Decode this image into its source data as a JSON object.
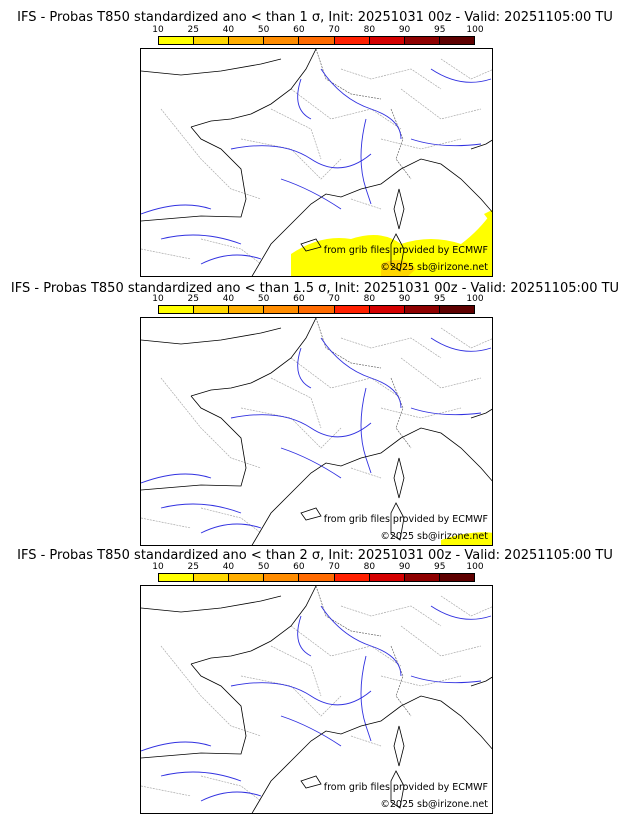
{
  "panels": [
    {
      "title": "IFS - Probas T850  standardized ano < than 1 σ, Init: 20251031 00z - Valid: 20251105:00 TU"
    },
    {
      "title": "IFS - Probas T850  standardized ano < than 1.5 σ, Init: 20251031 00z - Valid: 20251105:00 TU"
    },
    {
      "title": "IFS - Probas T850  standardized ano < than 2 σ, Init: 20251031 00z - Valid: 20251105:00 TU"
    }
  ],
  "colorbar": {
    "ticks": [
      "10",
      "25",
      "40",
      "50",
      "60",
      "70",
      "80",
      "90",
      "95",
      "100"
    ],
    "colors": [
      "#ffff00",
      "#ffd700",
      "#ffae00",
      "#ff8c00",
      "#ff6a00",
      "#ff2000",
      "#d40000",
      "#8e0000",
      "#5e0000"
    ]
  },
  "credits": {
    "source": "from grib files provided by ECMWF",
    "copyright": "©2025 sb@irizone.net"
  }
}
